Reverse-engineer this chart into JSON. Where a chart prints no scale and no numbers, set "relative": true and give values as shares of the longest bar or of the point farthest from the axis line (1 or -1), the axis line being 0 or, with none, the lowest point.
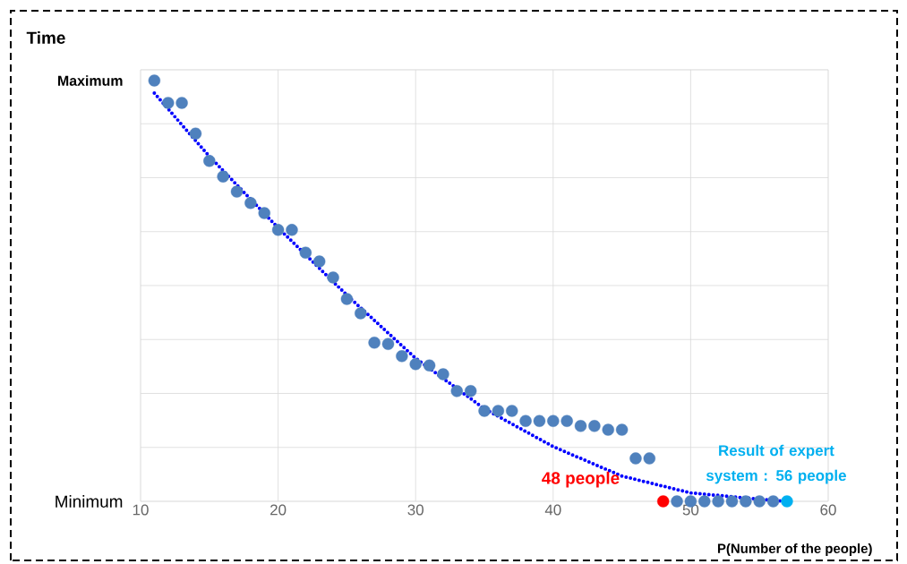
{
  "chart_data": {
    "type": "scatter",
    "relative": true,
    "xlabel": "P(Number of the people)",
    "ylabel": "Time",
    "xlim": [
      10,
      60
    ],
    "xticks": [
      10,
      20,
      30,
      40,
      50,
      60
    ],
    "grid": true,
    "marker": "circle",
    "series": [
      {
        "color": "#4f81bd",
        "x": [
          11,
          12,
          13,
          14,
          15,
          16,
          17,
          18,
          19,
          20,
          21,
          22,
          23,
          24,
          25,
          26,
          27,
          28,
          29,
          30,
          31,
          32,
          33,
          34,
          35,
          36,
          37,
          38,
          39,
          40,
          41,
          42,
          43,
          44,
          45,
          46,
          47,
          49,
          50,
          51,
          52,
          53,
          54,
          55,
          56
        ],
        "values": [
          1,
          0.947,
          0.947,
          0.874,
          0.809,
          0.772,
          0.736,
          0.709,
          0.685,
          0.645,
          0.645,
          0.591,
          0.57,
          0.532,
          0.481,
          0.447,
          0.377,
          0.374,
          0.345,
          0.326,
          0.323,
          0.302,
          0.262,
          0.262,
          0.215,
          0.215,
          0.215,
          0.191,
          0.191,
          0.191,
          0.191,
          0.179,
          0.179,
          0.17,
          0.17,
          0.102,
          0.102,
          0,
          0,
          0,
          0,
          0,
          0,
          0,
          0
        ]
      },
      {
        "color": "#ff0000",
        "x": [
          48
        ],
        "values": [
          0
        ]
      },
      {
        "color": "#00b0f0",
        "x": [
          57
        ],
        "values": [
          0
        ]
      },
      {
        "type": "line",
        "color": "#0000ff",
        "line_style": "dotted",
        "marker": "none",
        "x": [
          11,
          15,
          20,
          25,
          30,
          35,
          40,
          45,
          50,
          55,
          57
        ],
        "values": [
          0.97,
          0.82,
          0.65,
          0.49,
          0.34,
          0.22,
          0.13,
          0.06,
          0.02,
          0.005,
          0
        ]
      }
    ],
    "annotations": [
      "Maximum",
      "Minimum",
      {
        "text": "48 people",
        "x": 48,
        "y": 0
      },
      {
        "text": "Result of expert system : 56 people",
        "x": 57,
        "y": 0
      }
    ]
  }
}
